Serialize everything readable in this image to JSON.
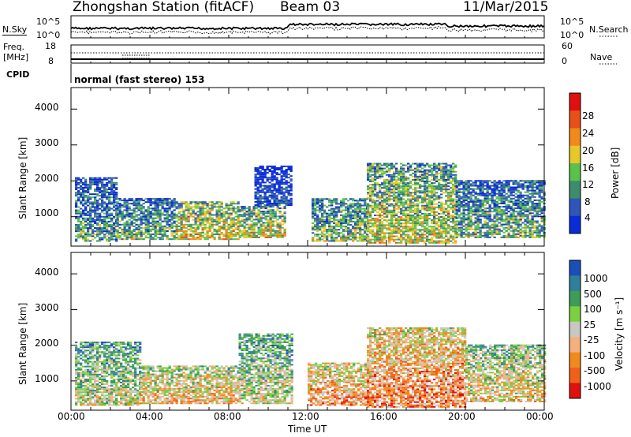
{
  "header": {
    "station": "Zhongshan Station (fitACF)",
    "beam": "Beam 03",
    "date": "11/Mar/2015"
  },
  "noise_panel": {
    "left_label": "N.Sky",
    "right_label": "N.Search",
    "left_ticks": [
      "10^5",
      "10^0"
    ],
    "right_ticks": [
      "10^5",
      "10^0"
    ]
  },
  "freq_panel": {
    "left_label_1": "Freq.",
    "left_label_2": "[MHz]",
    "left_ticks": [
      "18",
      "8"
    ],
    "right_ticks": [
      "60",
      "0"
    ],
    "right_label": "Nave",
    "cpid_label": "CPID",
    "mode_text": "normal (fast stereo) 153"
  },
  "x_axis": {
    "label": "Time UT",
    "ticks": [
      "00:00",
      "04:00",
      "08:00",
      "12:00",
      "16:00",
      "20:00",
      "00:00"
    ]
  },
  "chart_data": [
    {
      "type": "heatmap",
      "name": "power",
      "ylabel": "Slant Range [km]",
      "yticks": [
        "1000",
        "2000",
        "3000",
        "4000"
      ],
      "ylim": [
        180,
        4600
      ],
      "xlim_hours": [
        0,
        24
      ],
      "colorbar_label": "Power [dB]",
      "colorbar_ticks": [
        "4",
        "8",
        "12",
        "16",
        "20",
        "24",
        "28"
      ],
      "colorbar_colors": [
        "#0a2bd8",
        "#2e56b8",
        "#3e8c6e",
        "#5ac24a",
        "#e6c82a",
        "#f08a1a",
        "#e8501a",
        "#e01010"
      ],
      "regions": [
        {
          "t0": 0.2,
          "t1": 2.3,
          "r0": 300,
          "r1": 2100,
          "level": 0.35
        },
        {
          "t0": 2.3,
          "t1": 5.3,
          "r0": 350,
          "r1": 1500,
          "level": 0.4
        },
        {
          "t0": 5.3,
          "t1": 8.5,
          "r0": 350,
          "r1": 1400,
          "level": 0.6
        },
        {
          "t0": 8.5,
          "t1": 10.8,
          "r0": 400,
          "r1": 1300,
          "level": 0.55
        },
        {
          "t0": 9.3,
          "t1": 11.2,
          "r0": 1300,
          "r1": 2400,
          "level": 0.15
        },
        {
          "t0": 12.2,
          "t1": 15.0,
          "r0": 300,
          "r1": 1500,
          "level": 0.45
        },
        {
          "t0": 15.0,
          "t1": 19.5,
          "r0": 250,
          "r1": 2500,
          "level": 0.55
        },
        {
          "t0": 19.5,
          "t1": 24.0,
          "r0": 400,
          "r1": 2000,
          "level": 0.4
        }
      ]
    },
    {
      "type": "heatmap",
      "name": "velocity",
      "ylabel": "Slant Range [km]",
      "yticks": [
        "1000",
        "2000",
        "3000",
        "4000"
      ],
      "ylim": [
        180,
        4600
      ],
      "xlim_hours": [
        0,
        24
      ],
      "colorbar_label": "Velocity [m s⁻¹]",
      "colorbar_ticks": [
        "1000",
        "500",
        "100",
        "25",
        "-25",
        "-100",
        "-500",
        "-1000"
      ],
      "colorbar_colors": [
        "#1a4fb8",
        "#2f7f9a",
        "#3d9c55",
        "#7ad040",
        "#c8c8c0",
        "#f4b080",
        "#f08a1a",
        "#f0601a",
        "#e01010"
      ],
      "regions": [
        {
          "t0": 0.2,
          "t1": 3.5,
          "r0": 300,
          "r1": 2100,
          "level": 0.5
        },
        {
          "t0": 3.5,
          "t1": 8.5,
          "r0": 350,
          "r1": 1400,
          "level": 0.65
        },
        {
          "t0": 8.5,
          "t1": 11.2,
          "r0": 350,
          "r1": 2300,
          "level": 0.5
        },
        {
          "t0": 12.0,
          "t1": 15.0,
          "r0": 300,
          "r1": 1500,
          "level": 0.75
        },
        {
          "t0": 15.0,
          "t1": 20.0,
          "r0": 250,
          "r1": 2500,
          "level": 0.78
        },
        {
          "t0": 20.0,
          "t1": 24.0,
          "r0": 400,
          "r1": 2000,
          "level": 0.6
        }
      ]
    }
  ]
}
